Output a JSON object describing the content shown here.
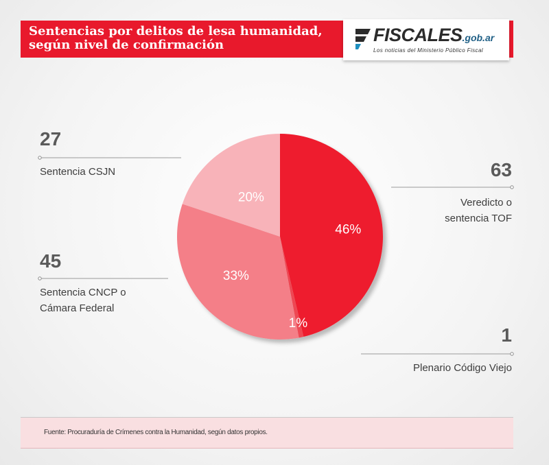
{
  "header": {
    "title_line1": "Sentencias por delitos de lesa humanidad,",
    "title_line2": "según nivel de confirmación"
  },
  "logo": {
    "name": "FISCALES",
    "domain": ".gob.ar",
    "tagline": "Los noticias del Ministerio Público Fiscal",
    "icon": "fiscales-logo-icon"
  },
  "colors": {
    "accent": "#e8192c",
    "slice_tof": "#ee1c2e",
    "slice_plenario": "#ee4752",
    "slice_cncp": "#f47f88",
    "slice_csjn": "#f8b3b9"
  },
  "chart_data": {
    "type": "pie",
    "slices": [
      {
        "label": "Veredicto o sentencia TOF",
        "value": 63,
        "percent_label": "46%",
        "color": "#ee1c2e"
      },
      {
        "label": "Plenario Código Viejo",
        "value": 1,
        "percent_label": "1%",
        "color": "#ee4752"
      },
      {
        "label": "Sentencia CNCP o Cámara Federal",
        "value": 45,
        "percent_label": "33%",
        "color": "#f47f88"
      },
      {
        "label": "Sentencia CSJN",
        "value": 27,
        "percent_label": "20%",
        "color": "#f8b3b9"
      }
    ],
    "callouts": [
      {
        "value": "27",
        "lines": [
          "Sentencia CSJN"
        ]
      },
      {
        "value": "63",
        "lines": [
          "Veredicto o",
          "sentencia TOF"
        ]
      },
      {
        "value": "45",
        "lines": [
          "Sentencia CNCP o",
          "Cámara Federal"
        ]
      },
      {
        "value": "1",
        "lines": [
          "Plenario Código Viejo"
        ]
      }
    ]
  },
  "footer": {
    "source": "Fuente: Procuraduría de Crímenes contra la Humanidad, según datos propios."
  }
}
